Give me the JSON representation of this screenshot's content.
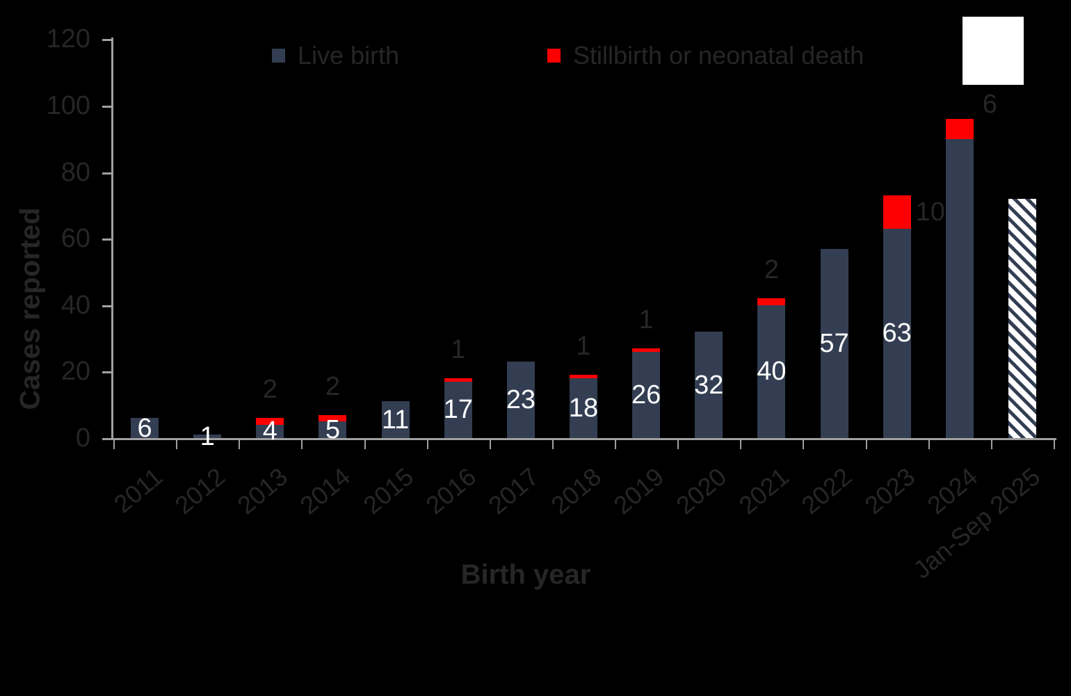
{
  "colors": {
    "background": "#000000",
    "live_birth_bar": "#333E52",
    "stillbirth_bar": "#FF0000",
    "axis_line": "#A0A0A0",
    "dark_text": "#262626",
    "inside_bar_label_text": "#FFFFFF",
    "white_patch": "#FFFFFF"
  },
  "chart_data": {
    "type": "bar",
    "stacked": true,
    "title": "",
    "xlabel": "Birth year",
    "ylabel": "Cases reported",
    "ylim": [
      0,
      120
    ],
    "yticks": [
      0,
      20,
      40,
      60,
      80,
      100,
      120
    ],
    "grid": false,
    "legend_position": "top",
    "categories": [
      "2011",
      "2012",
      "2013",
      "2014",
      "2015",
      "2016",
      "2017",
      "2018",
      "2019",
      "2020",
      "2021",
      "2022",
      "2023",
      "2024",
      "Jan-Sep 2025"
    ],
    "series": [
      {
        "name": "Live birth",
        "color": "#333E52",
        "values": [
          6,
          1,
          4,
          5,
          11,
          17,
          23,
          18,
          26,
          32,
          40,
          57,
          63,
          90,
          null
        ]
      },
      {
        "name": "Stillbirth or neonatal death",
        "color": "#FF0000",
        "values": [
          0,
          0,
          2,
          2,
          0,
          1,
          0,
          1,
          1,
          0,
          2,
          0,
          10,
          6,
          null
        ]
      }
    ],
    "hatched_bar": {
      "category": "Jan-Sep 2025",
      "total": 72,
      "pattern": "diagonal-stripe",
      "stripe_color": "#333E52",
      "background_color": "#FFFFFF"
    },
    "inside_bar_labels": [
      "6",
      "1",
      "4",
      "5",
      "11",
      "17",
      "23",
      "18",
      "26",
      "32",
      "40",
      "57",
      "63",
      "",
      ""
    ],
    "outside_labels": [
      {
        "category": "2013",
        "text": "2",
        "placement": "above"
      },
      {
        "category": "2014",
        "text": "2",
        "placement": "above"
      },
      {
        "category": "2016",
        "text": "1",
        "placement": "above"
      },
      {
        "category": "2018",
        "text": "1",
        "placement": "above"
      },
      {
        "category": "2019",
        "text": "1",
        "placement": "above"
      },
      {
        "category": "2021",
        "text": "2",
        "placement": "above"
      },
      {
        "category": "2023",
        "text": "10",
        "placement": "right-of-top"
      },
      {
        "category": "2024",
        "text": "6",
        "placement": "above-right"
      }
    ]
  }
}
